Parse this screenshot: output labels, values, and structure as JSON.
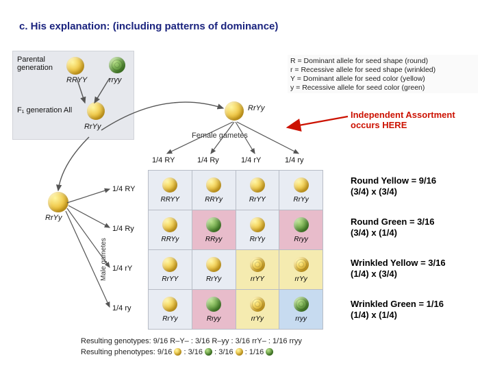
{
  "title": "c. His explanation: (including patterns of dominance)",
  "key": {
    "R": "R = Dominant allele for seed shape (round)",
    "r": "r = Recessive allele for seed shape (wrinkled)",
    "Y": "Y = Dominant allele for seed color (yellow)",
    "y": "y = Recessive allele for seed color (green)"
  },
  "parental": {
    "label1": "Parental",
    "label2": "generation",
    "g1": "RRYY",
    "g2": "rryy",
    "f1label": "F₁ generation   All",
    "f1geno": "RrYy"
  },
  "offspring_center_geno": "RrYy",
  "female_gametes_label": "Female gametes",
  "male_gametes_label": "Male gametes",
  "gamete_fracs": [
    "1/4 RY",
    "1/4 Ry",
    "1/4 rY",
    "1/4 ry"
  ],
  "independent_label1": "Independent Assortment",
  "independent_label2": "occurs HERE",
  "phenotypes": {
    "ry": {
      "title": "Round Yellow = 9/16",
      "sub": "(3/4) x (3/4)"
    },
    "rg": {
      "title": "Round Green = 3/16",
      "sub": "(3/4) x (1/4)"
    },
    "wy": {
      "title": "Wrinkled Yellow = 3/16",
      "sub": "(1/4) x (3/4)"
    },
    "wg": {
      "title": "Wrinkled Green = 1/16",
      "sub": "(1/4) x (1/4)"
    }
  },
  "punnett": {
    "rows": [
      "RY",
      "Ry",
      "rY",
      "ry"
    ],
    "cols": [
      "RY",
      "Ry",
      "rY",
      "ry"
    ],
    "cells": [
      [
        {
          "g": "RRYY",
          "p": "yellow",
          "w": false,
          "hl": ""
        },
        {
          "g": "RRYy",
          "p": "yellow",
          "w": false,
          "hl": ""
        },
        {
          "g": "RrYY",
          "p": "yellow",
          "w": false,
          "hl": ""
        },
        {
          "g": "RrYy",
          "p": "yellow",
          "w": false,
          "hl": ""
        }
      ],
      [
        {
          "g": "RRYy",
          "p": "yellow",
          "w": false,
          "hl": ""
        },
        {
          "g": "RRyy",
          "p": "green",
          "w": false,
          "hl": "hl-pink"
        },
        {
          "g": "RrYy",
          "p": "yellow",
          "w": false,
          "hl": ""
        },
        {
          "g": "Rryy",
          "p": "green",
          "w": false,
          "hl": "hl-pink"
        }
      ],
      [
        {
          "g": "RrYY",
          "p": "yellow",
          "w": false,
          "hl": ""
        },
        {
          "g": "RrYy",
          "p": "yellow",
          "w": false,
          "hl": ""
        },
        {
          "g": "rrYY",
          "p": "yellow",
          "w": true,
          "hl": "hl-yellow"
        },
        {
          "g": "rrYy",
          "p": "yellow",
          "w": true,
          "hl": "hl-yellow"
        }
      ],
      [
        {
          "g": "RrYy",
          "p": "yellow",
          "w": false,
          "hl": ""
        },
        {
          "g": "Rryy",
          "p": "green",
          "w": false,
          "hl": "hl-pink"
        },
        {
          "g": "rrYy",
          "p": "yellow",
          "w": true,
          "hl": "hl-yellow"
        },
        {
          "g": "rryy",
          "p": "green",
          "w": true,
          "hl": "hl-blue"
        }
      ]
    ]
  },
  "results": {
    "genotypes": "Resulting genotypes:  9/16 R–Y–  :  3/16 R–yy  :  3/16 rrY–  :  1/16 rryy",
    "phenotypes_prefix": "Resulting phenotypes:  9/16",
    "phenotypes_mid1": " :  3/16",
    "phenotypes_mid2": " :  3/16",
    "phenotypes_mid3": " :  1/16"
  },
  "colors": {
    "title": "#1a237e",
    "red": "#cc1100",
    "panel_bg": "#e6e8ed",
    "punnett_bg": "#e8ecf3",
    "pea_yellow": "#e8b321",
    "pea_green": "#4a8a2a"
  }
}
